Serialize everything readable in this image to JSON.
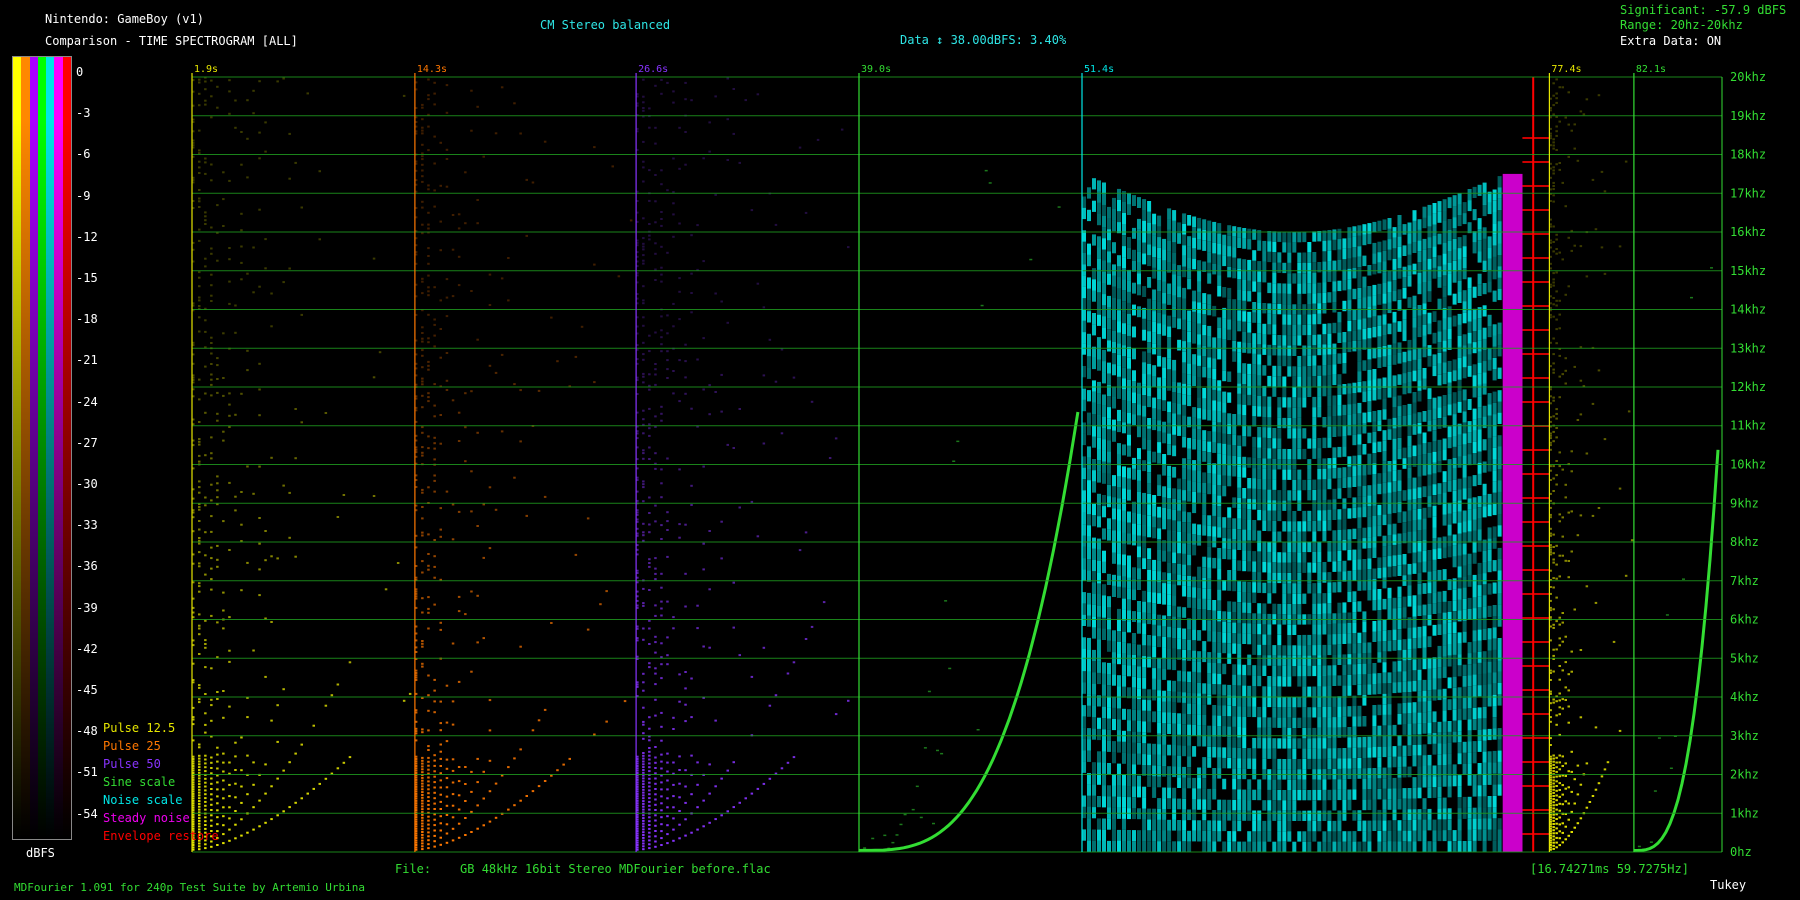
{
  "header": {
    "system": "Nintendo: GameBoy (v1)",
    "mode": "Comparison - TIME SPECTROGRAM [ALL]",
    "channel": "CM Stereo balanced",
    "data_range": "Data ↕ 38.00dBFS: 3.40%",
    "significant": "Significant: -57.9 dBFS",
    "range": "Range: 20hz-20khz",
    "extra": "Extra Data: ON"
  },
  "colorbar": {
    "colors": [
      "#ffff00",
      "#ff8800",
      "#aa00ff",
      "#00ff00",
      "#00e6e6",
      "#ff00ff",
      "#ff0000"
    ],
    "unit_label": "dBFS"
  },
  "legend": [
    {
      "label": "Pulse 12.5",
      "color": "#e6e600"
    },
    {
      "label": "Pulse 25",
      "color": "#ff7700"
    },
    {
      "label": "Pulse 50",
      "color": "#8833ff"
    },
    {
      "label": "Sine scale",
      "color": "#33dd33"
    },
    {
      "label": "Noise scale",
      "color": "#00e6e6"
    },
    {
      "label": "Steady noise",
      "color": "#ee00ee"
    },
    {
      "label": "Envelope restore",
      "color": "#ff0000"
    }
  ],
  "chart_data": {
    "type": "heatmap",
    "title": "TIME SPECTROGRAM [ALL]",
    "color_scale_dbfs": [
      0,
      -3,
      -6,
      -9,
      -12,
      -15,
      -18,
      -21,
      -24,
      -27,
      -30,
      -33,
      -36,
      -39,
      -42,
      -45,
      -48,
      -51,
      -54
    ],
    "y_axis": {
      "ticks": [
        "0hz",
        "1khz",
        "2khz",
        "3khz",
        "4khz",
        "5khz",
        "6khz",
        "7khz",
        "8khz",
        "9khz",
        "10khz",
        "11khz",
        "12khz",
        "13khz",
        "14khz",
        "15khz",
        "16khz",
        "17khz",
        "18khz",
        "19khz",
        "20khz"
      ],
      "ylim": [
        0,
        20000
      ]
    },
    "time_markers": [
      {
        "label": "1.9s",
        "time": 1.9,
        "color": "#e6e600"
      },
      {
        "label": "14.3s",
        "time": 14.3,
        "color": "#ff7700"
      },
      {
        "label": "26.6s",
        "time": 26.6,
        "color": "#8833ff"
      },
      {
        "label": "39.0s",
        "time": 39.0,
        "color": "#33dd33"
      },
      {
        "label": "51.4s",
        "time": 51.4,
        "color": "#00e6e6"
      },
      {
        "label": "77.4s",
        "time": 77.4,
        "color": "#e6e600"
      },
      {
        "label": "82.1s",
        "time": 82.1,
        "color": "#33dd33"
      }
    ],
    "blocks": [
      {
        "name": "Pulse 12.5",
        "color": "#e6e600",
        "start": 1.9,
        "end": 14.3,
        "style": "harmonic"
      },
      {
        "name": "Pulse 25",
        "color": "#ff7700",
        "start": 14.3,
        "end": 26.6,
        "style": "harmonic"
      },
      {
        "name": "Pulse 50",
        "color": "#8833ff",
        "start": 26.6,
        "end": 39.0,
        "style": "harmonic"
      },
      {
        "name": "Sine scale",
        "color": "#33dd33",
        "start": 39.0,
        "end": 51.4,
        "style": "sine"
      },
      {
        "name": "Noise scale",
        "color": "#00e6e6",
        "start": 51.4,
        "end": 74.8,
        "style": "noise"
      },
      {
        "name": "Steady noise",
        "color": "#ee00ee",
        "start": 74.8,
        "end": 75.9,
        "style": "steady"
      },
      {
        "name": "Envelope restore",
        "color": "#ff0000",
        "start": 75.9,
        "end": 77.4,
        "style": "envelope"
      },
      {
        "name": "Pulse 12.5",
        "color": "#e6e600",
        "start": 77.4,
        "end": 82.1,
        "style": "dense"
      },
      {
        "name": "Sine scale",
        "color": "#33dd33",
        "start": 82.1,
        "end": 87.0,
        "style": "sine"
      }
    ],
    "time_range": [
      1.9,
      87.0
    ]
  },
  "footer": {
    "file_label": "File:",
    "file_value": "GB   48kHz 16bit Stereo MDFourier before.flac",
    "timing": "[16.74271ms 59.7275Hz]",
    "credits": "MDFourier 1.091 for 240p Test Suite by Artemio Urbina",
    "window": "Tukey"
  }
}
